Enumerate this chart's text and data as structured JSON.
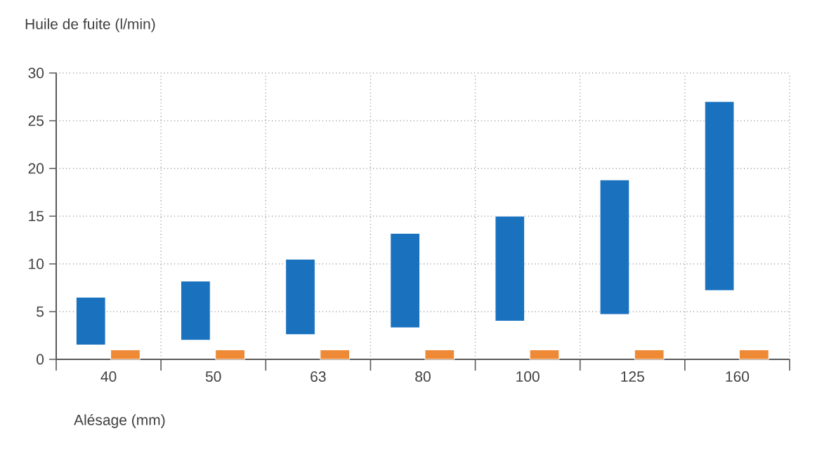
{
  "chart_data": {
    "type": "bar",
    "ylabel": "Huile de fuite (l/min)",
    "xlabel": "Alésage (mm)",
    "categories": [
      "40",
      "50",
      "63",
      "80",
      "100",
      "125",
      "160"
    ],
    "series": [
      {
        "color": "#1a72bf",
        "base": [
          1.5,
          2,
          2.6,
          3.3,
          4,
          4.7,
          7.2
        ],
        "values": [
          5,
          6.2,
          7.9,
          9.9,
          11,
          14.1,
          19.8
        ]
      },
      {
        "color": "#ee8a35",
        "base": [
          0,
          0,
          0,
          0,
          0,
          0,
          0
        ],
        "values": [
          1,
          1,
          1,
          1,
          1,
          1,
          1
        ]
      }
    ],
    "ylim": [
      0,
      30
    ],
    "yticks": [
      0,
      5,
      10,
      15,
      20,
      25,
      30
    ],
    "grid": true
  }
}
